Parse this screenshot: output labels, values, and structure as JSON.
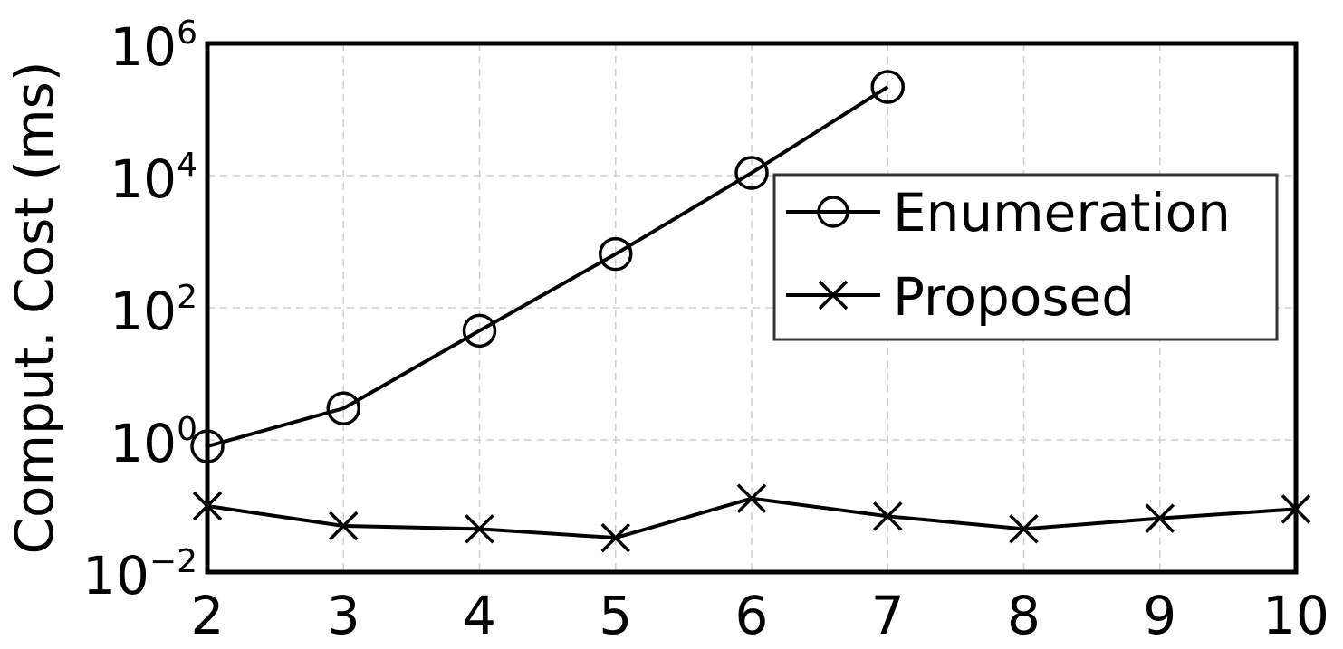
{
  "chart_data": {
    "type": "line",
    "ylabel": "Comput. Cost (ms)",
    "xlabel": "",
    "yscale": "log",
    "ylim": [
      0.01,
      1000000
    ],
    "xlim": [
      2,
      10
    ],
    "x_ticks": [
      "2",
      "3",
      "4",
      "5",
      "6",
      "7",
      "8",
      "9",
      "10"
    ],
    "y_ticks": [
      {
        "value": 0.01,
        "base": "10",
        "exp": "−2"
      },
      {
        "value": 1,
        "base": "10",
        "exp": "0"
      },
      {
        "value": 100,
        "base": "10",
        "exp": "2"
      },
      {
        "value": 10000,
        "base": "10",
        "exp": "4"
      },
      {
        "value": 1000000,
        "base": "10",
        "exp": "6"
      }
    ],
    "grid": true,
    "legend_position": "right, upper-middle",
    "series": [
      {
        "name": "Enumeration",
        "marker": "circle",
        "x": [
          2,
          3,
          4,
          5,
          6,
          7
        ],
        "values": [
          0.8,
          3,
          45,
          650,
          11000,
          220000
        ]
      },
      {
        "name": "Proposed",
        "marker": "x",
        "x": [
          2,
          3,
          4,
          5,
          6,
          7,
          8,
          9,
          10
        ],
        "values": [
          0.1,
          0.05,
          0.045,
          0.033,
          0.13,
          0.07,
          0.045,
          0.065,
          0.09
        ]
      }
    ]
  }
}
